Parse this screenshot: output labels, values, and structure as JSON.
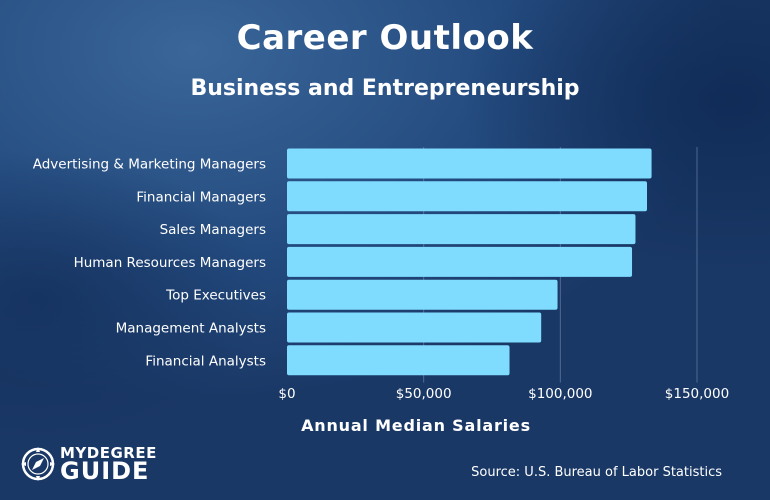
{
  "title": "Career Outlook",
  "subtitle": "Business and Entrepreneurship",
  "source": "Source: U.S. Bureau of Labor Statistics",
  "logo": {
    "line1": "MYDEGREE",
    "line2": "GUIDE"
  },
  "colors": {
    "bar": "#7fdcff",
    "text": "#ffffff",
    "grid": "#7a93b8"
  },
  "chart_data": {
    "type": "bar",
    "orientation": "horizontal",
    "categories": [
      "Advertising & Marketing Managers",
      "Financial Managers",
      "Sales Managers",
      "Human Resources Managers",
      "Top Executives",
      "Management Analysts",
      "Financial Analysts"
    ],
    "values": [
      133380,
      131710,
      127490,
      126230,
      98980,
      93000,
      81410
    ],
    "xlabel": "Annual Median Salaries",
    "xlim": [
      0,
      150000
    ],
    "ticks": [
      0,
      50000,
      100000,
      150000
    ],
    "tick_labels": [
      "$0",
      "$50,000",
      "$100,000",
      "$150,000"
    ],
    "grid": true
  }
}
